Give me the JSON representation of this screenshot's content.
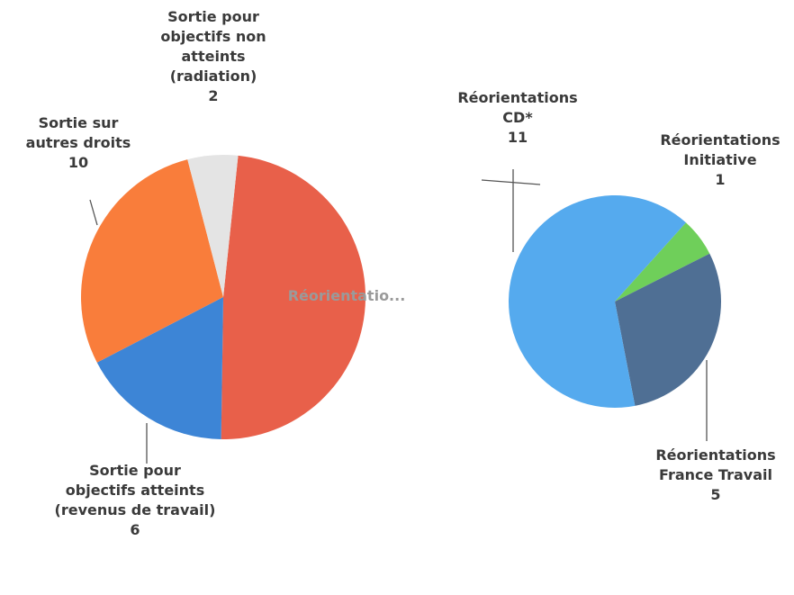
{
  "chart_data": [
    {
      "type": "pie",
      "categories": [
        "Réorientatio...",
        "Sortie pour objectifs atteints (revenus de travail)",
        "Sortie sur autres droits",
        "Sortie pour objectifs non atteints (radiation)"
      ],
      "values": [
        17,
        6,
        10,
        2
      ],
      "value_labels": [
        null,
        "6",
        "10",
        "2"
      ],
      "colors": [
        "#e8604a",
        "#3d85d6",
        "#f97d3b",
        "#e4e4e4"
      ]
    },
    {
      "type": "pie",
      "categories": [
        "Réorientations Initiative",
        "Réorientations France Travail",
        "Réorientations CD*"
      ],
      "values": [
        1,
        5,
        11
      ],
      "colors": [
        "#6fcf5a",
        "#4f6f94",
        "#55aaee"
      ]
    }
  ]
}
